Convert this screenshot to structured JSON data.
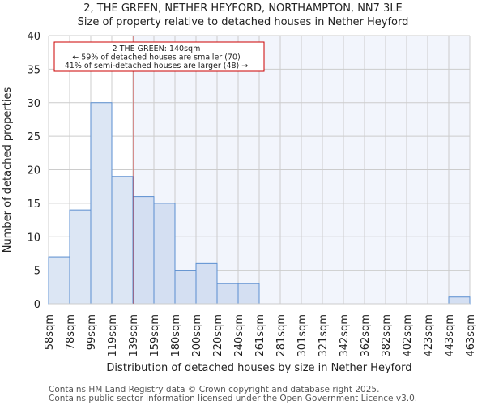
{
  "chart_data": {
    "type": "bar",
    "title": "2, THE GREEN, NETHER HEYFORD, NORTHAMPTON, NN7 3LE",
    "subtitle": "Size of property relative to detached houses in Nether Heyford",
    "xlabel": "Distribution of detached houses by size in Nether Heyford",
    "ylabel": "Number of detached properties",
    "x_tick_labels": [
      "58sqm",
      "78sqm",
      "99sqm",
      "119sqm",
      "139sqm",
      "159sqm",
      "180sqm",
      "200sqm",
      "220sqm",
      "240sqm",
      "261sqm",
      "281sqm",
      "301sqm",
      "321sqm",
      "342sqm",
      "362sqm",
      "382sqm",
      "402sqm",
      "423sqm",
      "443sqm",
      "463sqm"
    ],
    "bin_edges": [
      58,
      78,
      99,
      119,
      139,
      159,
      180,
      200,
      220,
      240,
      261,
      281,
      301,
      321,
      342,
      362,
      382,
      402,
      423,
      443,
      463
    ],
    "values": [
      7,
      14,
      30,
      19,
      16,
      15,
      5,
      6,
      3,
      3,
      0,
      0,
      0,
      0,
      0,
      0,
      0,
      0,
      0,
      1
    ],
    "y_ticks": [
      0,
      5,
      10,
      15,
      20,
      25,
      30,
      35,
      40
    ],
    "ylim": [
      0,
      40
    ],
    "grid": true,
    "marker": {
      "value": 140,
      "color": "#cc0000"
    },
    "annotation": {
      "line1": "2 THE GREEN: 140sqm",
      "line2": "← 59% of detached houses are smaller (70)",
      "line3": "41% of semi-detached houses are larger (48) →"
    },
    "colors": {
      "bar_fill": "#dce6f4",
      "bar_fill_right": "#d4dff2",
      "bar_edge": "#5a8ed0",
      "shade": "#f2f5fc"
    }
  },
  "footer": {
    "line1": "Contains HM Land Registry data © Crown copyright and database right 2025.",
    "line2": "Contains public sector information licensed under the Open Government Licence v3.0."
  }
}
